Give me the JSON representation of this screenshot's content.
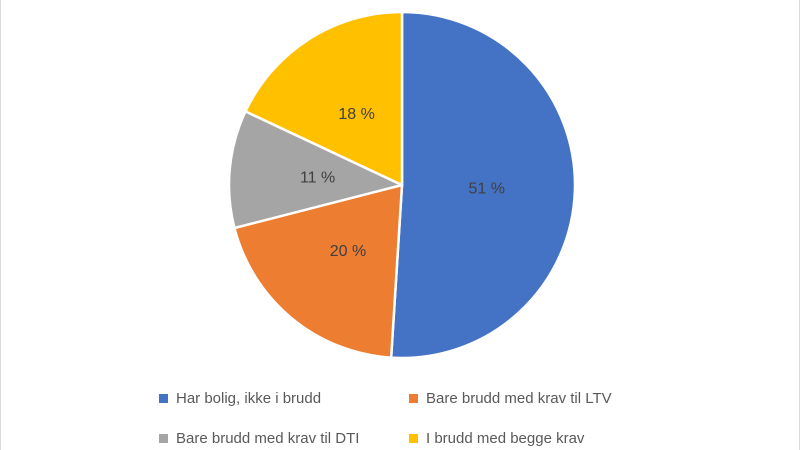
{
  "chart_data": {
    "type": "pie",
    "title": "",
    "start_angle_deg": 0,
    "direction": "clockwise",
    "legend_position": "bottom",
    "background_color": "#ffffff",
    "data_label_color": "#404040",
    "legend_text_color": "#595959",
    "slice_border_color": "#ffffff",
    "slices": [
      {
        "label": "Har bolig, ikke i brudd",
        "value": 51,
        "data_label": "51 %",
        "color": "#4472C4"
      },
      {
        "label": "Bare brudd med krav til LTV",
        "value": 20,
        "data_label": "20 %",
        "color": "#ED7D31"
      },
      {
        "label": "Bare brudd med krav til DTI",
        "value": 11,
        "data_label": "11 %",
        "color": "#A5A5A5"
      },
      {
        "label": "I brudd med begge krav",
        "value": 18,
        "data_label": "18 %",
        "color": "#FFC000"
      }
    ]
  }
}
